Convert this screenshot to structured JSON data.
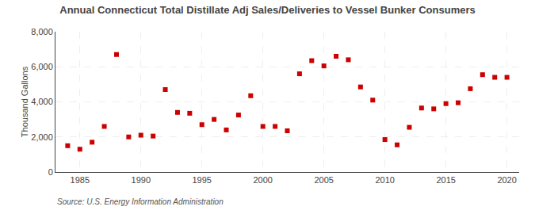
{
  "chart_data": {
    "type": "scatter",
    "title": "Annual Connecticut Total Distillate Adj Sales/Deliveries to Vessel Bunker Consumers",
    "ylabel": "Thousand Gallons",
    "annotations": [
      "Source: U.S. Energy Information Administration"
    ],
    "x": [
      1984,
      1985,
      1986,
      1987,
      1988,
      1989,
      1990,
      1991,
      1992,
      1993,
      1994,
      1995,
      1996,
      1997,
      1998,
      1999,
      2000,
      2001,
      2002,
      2003,
      2004,
      2005,
      2006,
      2007,
      2008,
      2009,
      2010,
      2011,
      2012,
      2013,
      2014,
      2015,
      2016,
      2017,
      2018,
      2019,
      2020
    ],
    "values": [
      1500,
      1300,
      1700,
      2600,
      6700,
      2000,
      2100,
      2050,
      4700,
      3400,
      3350,
      2700,
      3000,
      2400,
      3250,
      4350,
      2600,
      2600,
      2350,
      5600,
      6350,
      6050,
      6600,
      6400,
      4850,
      4100,
      1850,
      1550,
      2550,
      3650,
      3600,
      3900,
      3950,
      4750,
      5550,
      5400,
      5400
    ],
    "color": "#cc0000",
    "marker": "square",
    "xlim": [
      1983,
      2021
    ],
    "xticks": [
      1985,
      1990,
      1995,
      2000,
      2005,
      2010,
      2015,
      2020
    ],
    "ylim": [
      0,
      8000
    ],
    "yticks": [
      0,
      {
        "value": 2000,
        "label": "2,000"
      },
      {
        "value": 4000,
        "label": "4,000"
      },
      {
        "value": 6000,
        "label": "6,000"
      },
      {
        "value": 8000,
        "label": "8,000"
      }
    ],
    "grid": true
  }
}
